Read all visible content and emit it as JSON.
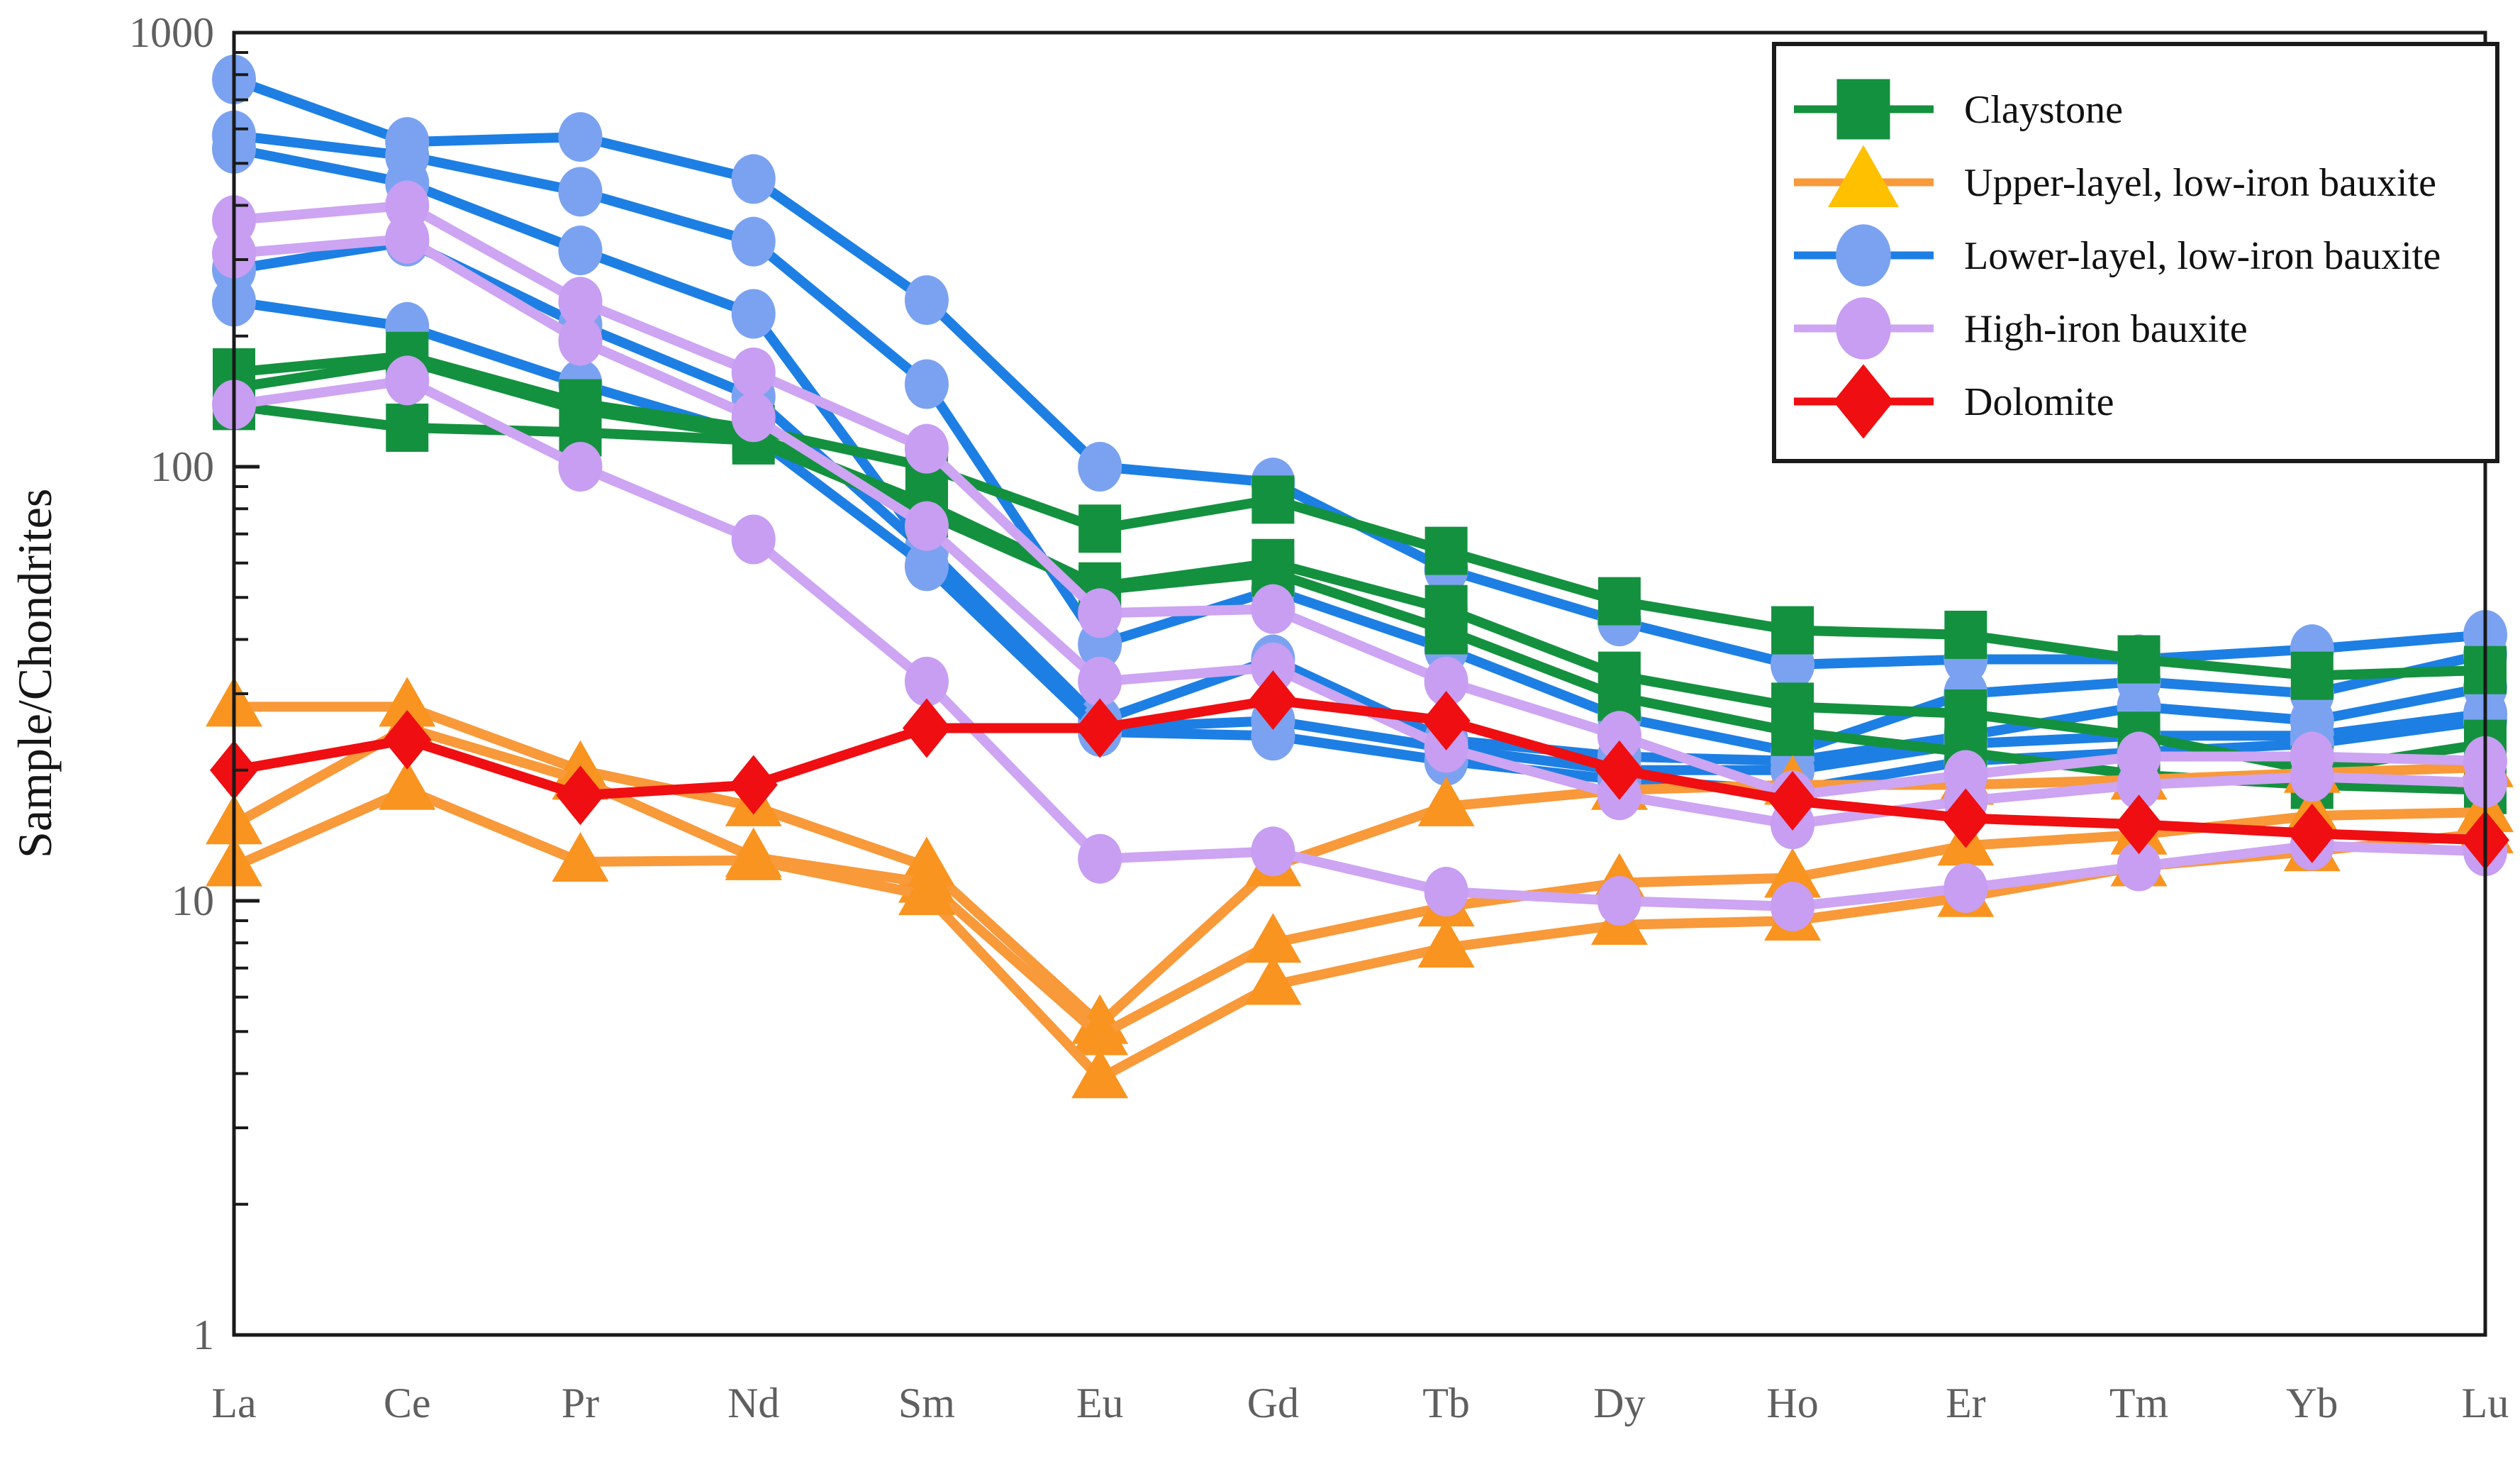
{
  "chart_data": {
    "type": "line",
    "title": "",
    "xlabel": "",
    "ylabel": "Sample/Chondrites",
    "y_scale": "log",
    "ylim": [
      1,
      1000
    ],
    "yticks": [
      {
        "value": 1000,
        "label": "1000"
      },
      {
        "value": 100,
        "label": "100"
      },
      {
        "value": 10,
        "label": "10"
      },
      {
        "value": 1,
        "label": "1"
      }
    ],
    "grid": "off",
    "legend_position": "top-right",
    "categories": [
      "La",
      "Ce",
      "Pr",
      "Nd",
      "Sm",
      "Eu",
      "Gd",
      "Tb",
      "Dy",
      "Ho",
      "Er",
      "Tm",
      "Yb",
      "Lu"
    ],
    "series": [
      {
        "name": "Lower-layel, low-iron bauxite",
        "marker": "circle",
        "line_color": "#1d7fe3",
        "marker_color": "#7ba2f0",
        "legend_marker_color": "#7ba2f0",
        "samples": [
          [
            780,
            560,
            575,
            460,
            242,
            100,
            92,
            58,
            44,
            35,
            36,
            36,
            38,
            41
          ],
          [
            580,
            520,
            430,
            330,
            155,
            39,
            52,
            38,
            26.5,
            22,
            30,
            32,
            30,
            37
          ],
          [
            540,
            450,
            315,
            225,
            65,
            26,
            36,
            23.5,
            21.5,
            21,
            24,
            28,
            26,
            31
          ],
          [
            285,
            330,
            212,
            145,
            64,
            25,
            26,
            22.5,
            20,
            20,
            23,
            24,
            24,
            27
          ],
          [
            240,
            210,
            155,
            118,
            59,
            24.5,
            24,
            21,
            19,
            18,
            21,
            22,
            23,
            26
          ]
        ]
      },
      {
        "name": "Claystone",
        "marker": "square",
        "line_color": "#14913f",
        "marker_color": "#14913f",
        "legend_marker_color": "#14913f",
        "samples": [
          [
            165,
            180,
            140,
            122,
            100,
            72,
            84,
            64,
            49,
            42,
            41,
            36,
            33,
            34
          ],
          [
            152,
            175,
            135,
            118,
            82,
            53,
            60,
            47,
            33,
            28,
            27,
            24,
            20,
            23
          ],
          [
            138,
            123,
            120,
            115,
            78,
            52,
            57,
            42,
            29.5,
            24.5,
            22,
            19.5,
            18.5,
            18
          ]
        ]
      },
      {
        "name": "Upper-layel, low-iron bauxite",
        "marker": "triangle",
        "line_color": "#f8993a",
        "marker_color": "#f8941f",
        "legend_marker_color": "#ffc000",
        "samples": [
          [
            28,
            28,
            20,
            16.5,
            12,
            5.2,
            12,
            16.5,
            18,
            18.5,
            18.5,
            19,
            19.7,
            20.3
          ],
          [
            15,
            25,
            19,
            12.6,
            11,
            4.9,
            8,
            9.7,
            11,
            11.3,
            13.4,
            14.2,
            15.7,
            16
          ],
          [
            12,
            18,
            12.3,
            12.4,
            10.3,
            3.9,
            6.4,
            7.8,
            8.8,
            9,
            10.2,
            12,
            13,
            14.3
          ]
        ]
      },
      {
        "name": "High-iron bauxite",
        "marker": "circle",
        "line_color": "#cda5f3",
        "marker_color": "#c79ef2",
        "legend_marker_color": "#c79ef2",
        "samples": [
          [
            370,
            400,
            240,
            165,
            110,
            46,
            47,
            32,
            24,
            17.5,
            19.5,
            21.5,
            21.5,
            21
          ],
          [
            310,
            335,
            195,
            130,
            73,
            32,
            34.5,
            22.5,
            17.5,
            15,
            17,
            18.5,
            19.3,
            18.7
          ],
          [
            139,
            158,
            100,
            68,
            32,
            12.5,
            13,
            10.5,
            10,
            9.7,
            10.7,
            12,
            13.4,
            13
          ]
        ]
      },
      {
        "name": "Dolomite",
        "marker": "diamond",
        "line_color": "#ef0e11",
        "marker_color": "#ef0e11",
        "legend_marker_color": "#ef0e11",
        "samples": [
          [
            20,
            23.5,
            17.5,
            18.5,
            25,
            25,
            29,
            26,
            20,
            17,
            15.5,
            15,
            14.3,
            13.8
          ]
        ]
      }
    ],
    "legend_order": [
      "Claystone",
      "Upper-layel, low-iron bauxite",
      "Lower-layel, low-iron bauxite",
      "High-iron bauxite",
      "Dolomite"
    ]
  },
  "layout_colors": {
    "frame": "#1a1a1a",
    "tick_text": "#5f5f5f",
    "background": "#ffffff"
  }
}
